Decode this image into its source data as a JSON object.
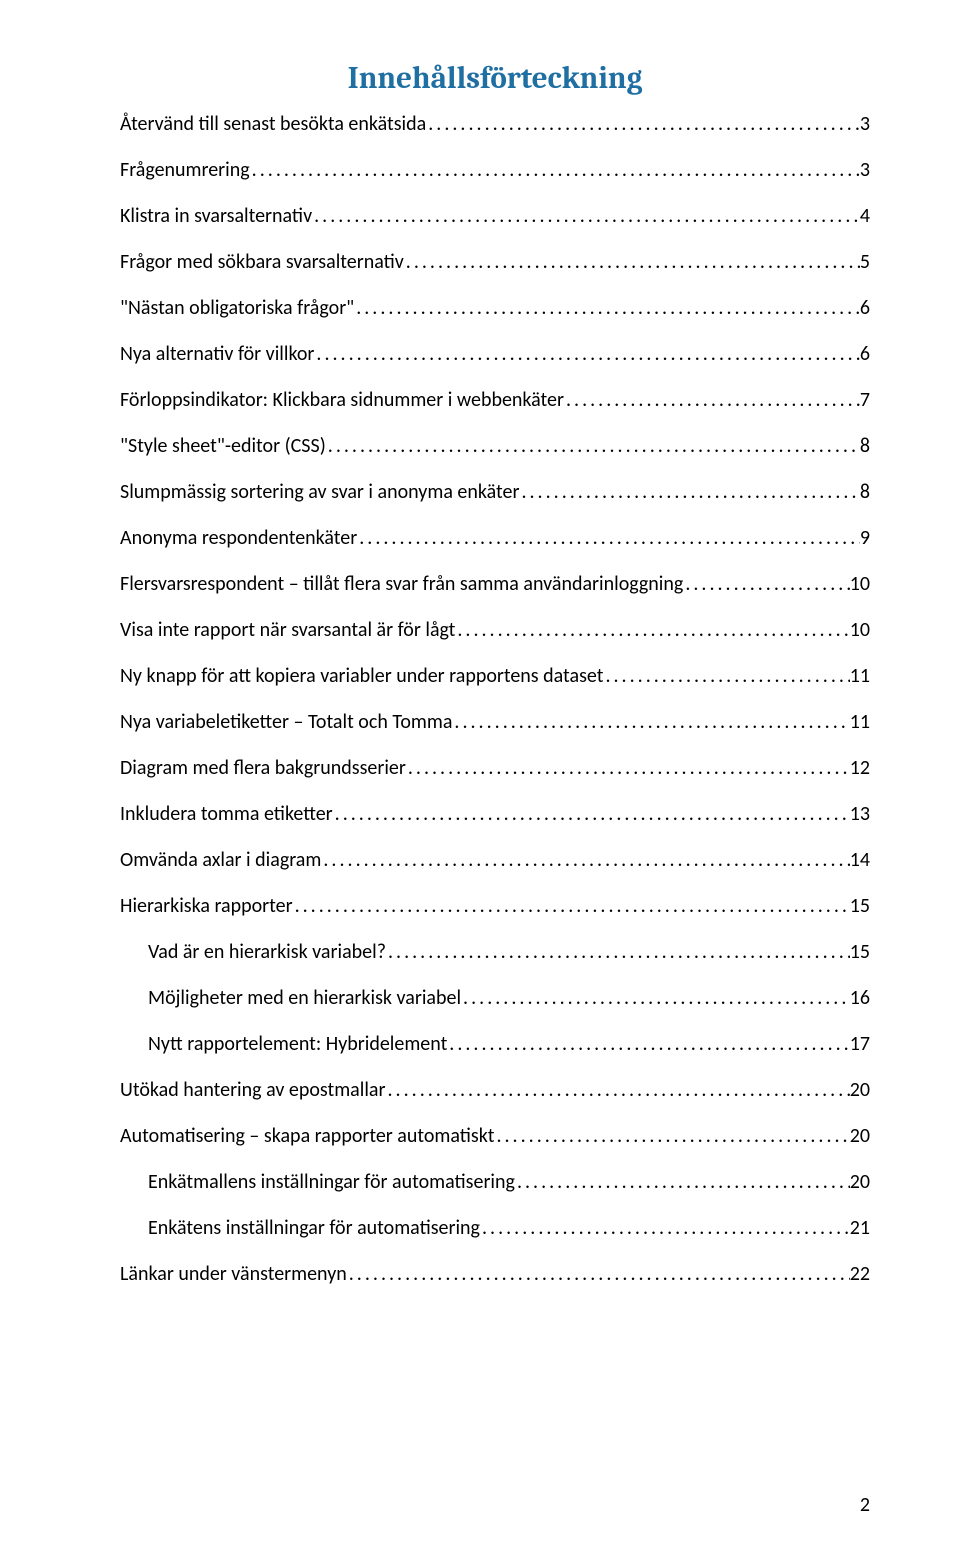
{
  "title_text": "Innehållsförteckning",
  "title_color": "#1f6fa3",
  "page_number": "2",
  "entries": [
    {
      "label": "Återvänd till senast besökta enkätsida",
      "page": "3",
      "indent": 0
    },
    {
      "label": "Frågenumrering",
      "page": "3",
      "indent": 0
    },
    {
      "label": "Klistra in svarsalternativ",
      "page": "4",
      "indent": 0
    },
    {
      "label": "Frågor med sökbara svarsalternativ",
      "page": "5",
      "indent": 0
    },
    {
      "label": "\"Nästan obligatoriska frågor\"",
      "page": "6",
      "indent": 0
    },
    {
      "label": "Nya alternativ för villkor",
      "page": "6",
      "indent": 0
    },
    {
      "label": "Förloppsindikator: Klickbara sidnummer i webbenkäter",
      "page": "7",
      "indent": 0
    },
    {
      "label": "\"Style sheet\"-editor (CSS)",
      "page": "8",
      "indent": 0
    },
    {
      "label": "Slumpmässig sortering av svar i anonyma enkäter",
      "page": "8",
      "indent": 0
    },
    {
      "label": "Anonyma respondentenkäter",
      "page": "9",
      "indent": 0
    },
    {
      "label": "Flersvarsrespondent – tillåt flera svar från samma användarinloggning",
      "page": "10",
      "indent": 0
    },
    {
      "label": "Visa inte rapport när svarsantal är för lågt",
      "page": "10",
      "indent": 0
    },
    {
      "label": "Ny knapp för att kopiera variabler under rapportens dataset",
      "page": "11",
      "indent": 0
    },
    {
      "label": "Nya variabeletiketter – Totalt och Tomma",
      "page": "11",
      "indent": 0
    },
    {
      "label": "Diagram med flera bakgrundsserier",
      "page": "12",
      "indent": 0
    },
    {
      "label": "Inkludera tomma etiketter",
      "page": "13",
      "indent": 0
    },
    {
      "label": "Omvända axlar i diagram",
      "page": "14",
      "indent": 0
    },
    {
      "label": "Hierarkiska rapporter",
      "page": "15",
      "indent": 0
    },
    {
      "label": "Vad är en hierarkisk variabel?",
      "page": "15",
      "indent": 1
    },
    {
      "label": "Möjligheter med en hierarkisk variabel",
      "page": "16",
      "indent": 1
    },
    {
      "label": "Nytt rapportelement: Hybridelement",
      "page": "17",
      "indent": 1
    },
    {
      "label": "Utökad hantering av epostmallar",
      "page": "20",
      "indent": 0
    },
    {
      "label": "Automatisering – skapa rapporter automatiskt",
      "page": "20",
      "indent": 0
    },
    {
      "label": "Enkätmallens inställningar för automatisering",
      "page": "20",
      "indent": 1
    },
    {
      "label": "Enkätens inställningar för automatisering",
      "page": "21",
      "indent": 1
    },
    {
      "label": "Länkar under vänstermenyn",
      "page": "22",
      "indent": 0
    }
  ]
}
